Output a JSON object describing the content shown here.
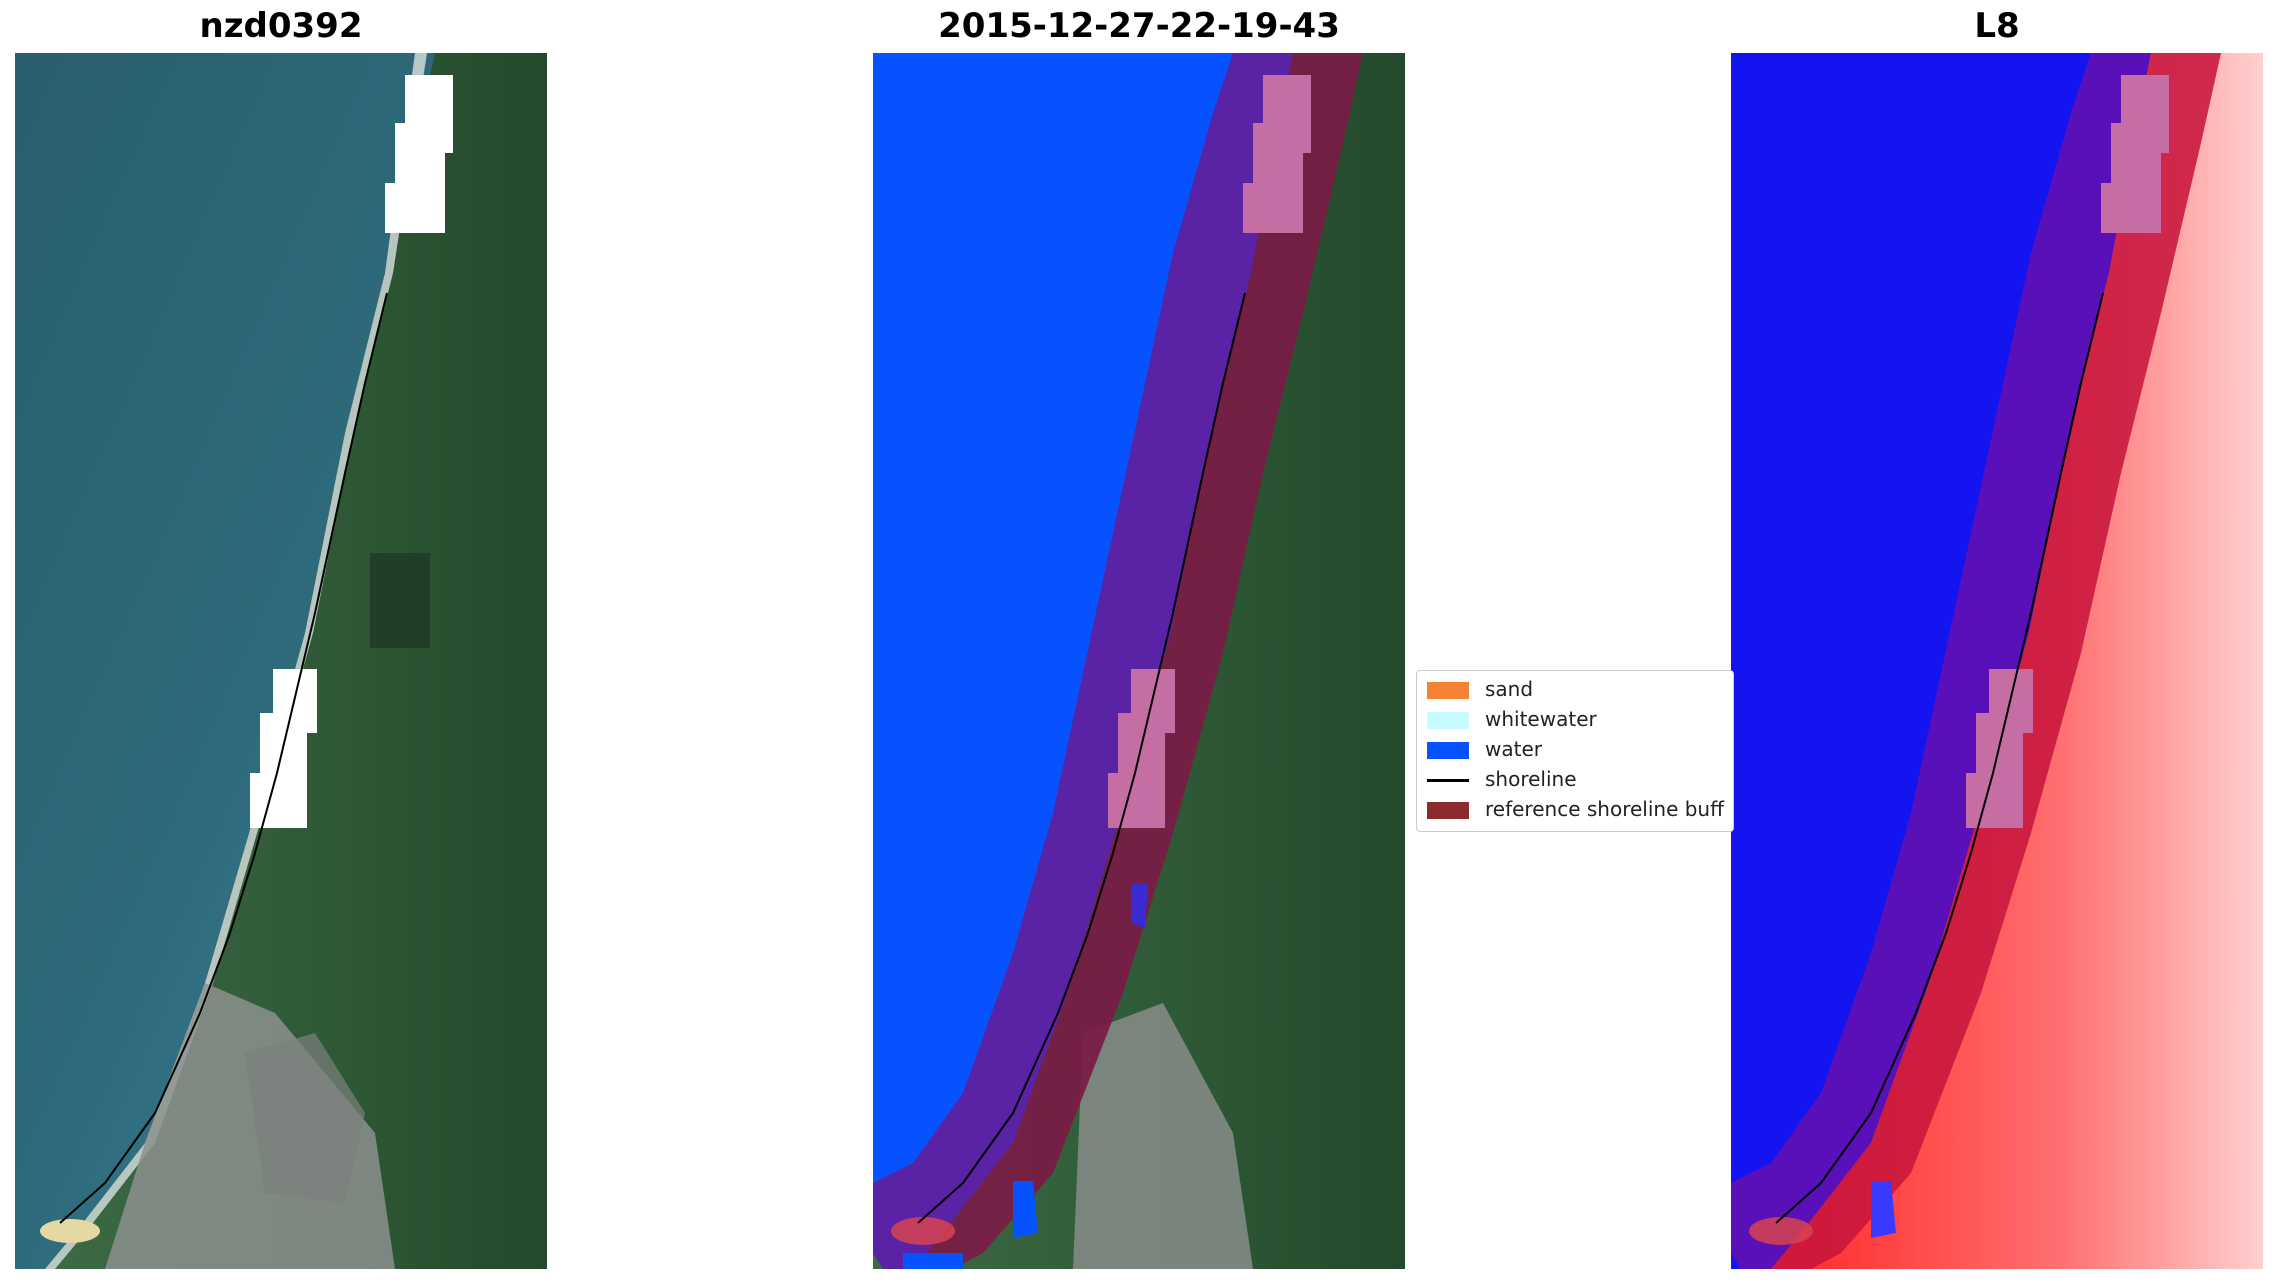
{
  "panels": [
    {
      "title": "nzd0392"
    },
    {
      "title": "2015-12-27-22-19-43"
    },
    {
      "title": "L8"
    }
  ],
  "legend": {
    "items": [
      {
        "label": "sand",
        "color": "#f58232",
        "kind": "patch"
      },
      {
        "label": "whitewater",
        "color": "#c7fbff",
        "kind": "patch"
      },
      {
        "label": "water",
        "color": "#0052ff",
        "kind": "patch"
      },
      {
        "label": "shoreline",
        "color": "#000000",
        "kind": "line"
      },
      {
        "label": "reference shoreline buff",
        "color": "#8c2a2e",
        "kind": "patch"
      }
    ]
  },
  "colors": {
    "ocean": "#2c6677",
    "ocean_near": "#3f8ea1",
    "land": "#2d5a35",
    "town": "#8a8f8c",
    "water_class": "#0652ff",
    "buffer": "#7a1b4d",
    "cloud_mask": "#ffffff",
    "cloud_mask_overlay": "#c76da4",
    "index_blue": "#1212ee",
    "index_red": "#ff4040"
  }
}
